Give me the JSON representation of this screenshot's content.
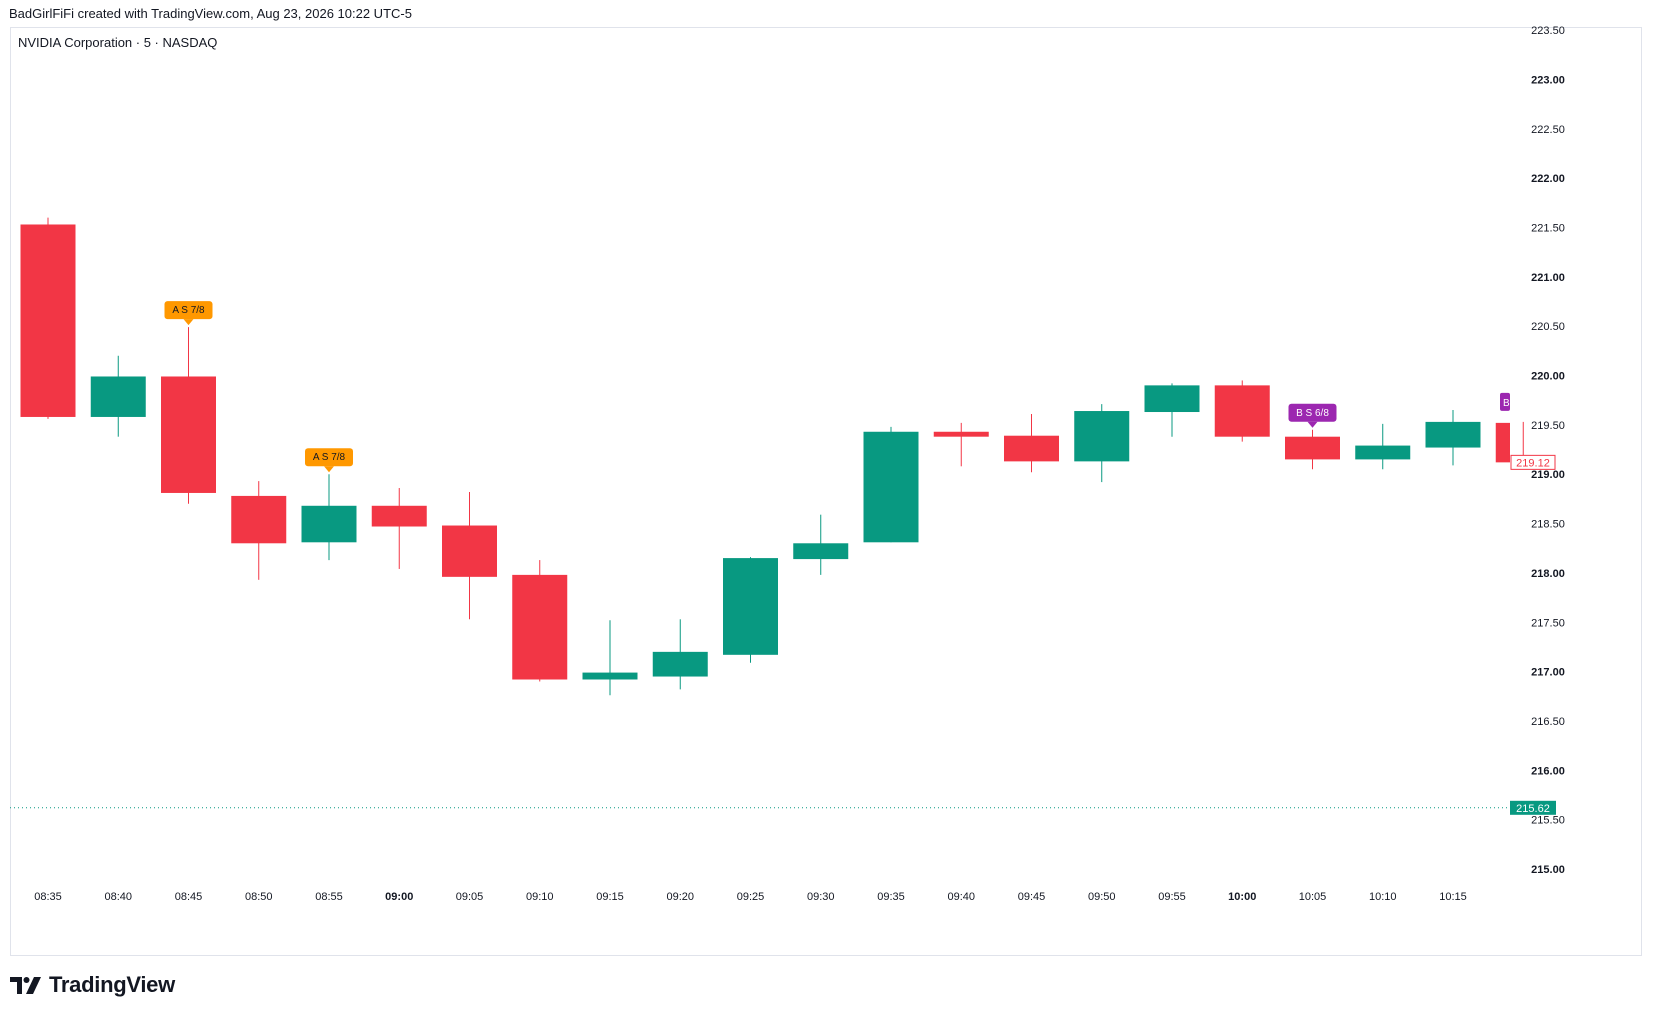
{
  "header": {
    "attribution": "BadGirlFiFi created with TradingView.com, Aug 23, 2026 10:22 UTC-5"
  },
  "symbol": {
    "title": "NVIDIA Corporation · 5 · NASDAQ"
  },
  "footer": {
    "brand": "TradingView",
    "logo_icon": "tradingview-logo-icon"
  },
  "colors": {
    "up": "#089981",
    "down": "#f23645",
    "orange": "#ff9800",
    "purple": "#9c27b0",
    "grid_text": "#131722"
  },
  "chart_data": {
    "type": "candlestick",
    "ylim": [
      214.7,
      223.6
    ],
    "y_ticks": [
      "215.00",
      "215.50",
      "216.00",
      "216.50",
      "217.00",
      "217.50",
      "218.00",
      "218.50",
      "219.00",
      "219.50",
      "220.00",
      "220.50",
      "221.00",
      "221.50",
      "222.00",
      "222.50",
      "223.00",
      "223.50"
    ],
    "y_ticks_bold": [
      "215.00",
      "216.00",
      "217.00",
      "218.00",
      "219.00",
      "220.00",
      "221.00",
      "222.00",
      "223.00"
    ],
    "x_ticks": [
      "08:35",
      "08:40",
      "08:45",
      "08:50",
      "08:55",
      "09:00",
      "09:05",
      "09:10",
      "09:15",
      "09:20",
      "09:25",
      "09:30",
      "09:35",
      "09:40",
      "09:45",
      "09:50",
      "09:55",
      "10:00",
      "10:05",
      "10:10",
      "10:15"
    ],
    "x_ticks_bold": [
      "09:00",
      "10:00"
    ],
    "candles": [
      {
        "t": "08:35",
        "o": 221.53,
        "h": 221.6,
        "l": 219.56,
        "c": 219.58
      },
      {
        "t": "08:40",
        "o": 219.58,
        "h": 220.2,
        "l": 219.38,
        "c": 219.99
      },
      {
        "t": "08:45",
        "o": 219.99,
        "h": 220.49,
        "l": 218.7,
        "c": 218.81
      },
      {
        "t": "08:50",
        "o": 218.78,
        "h": 218.93,
        "l": 217.93,
        "c": 218.3
      },
      {
        "t": "08:55",
        "o": 218.31,
        "h": 219.0,
        "l": 218.13,
        "c": 218.68
      },
      {
        "t": "09:00",
        "o": 218.68,
        "h": 218.86,
        "l": 218.04,
        "c": 218.47
      },
      {
        "t": "09:05",
        "o": 218.48,
        "h": 218.82,
        "l": 217.53,
        "c": 217.96
      },
      {
        "t": "09:10",
        "o": 217.98,
        "h": 218.13,
        "l": 216.9,
        "c": 216.92
      },
      {
        "t": "09:15",
        "o": 216.92,
        "h": 217.52,
        "l": 216.76,
        "c": 216.99
      },
      {
        "t": "09:20",
        "o": 216.95,
        "h": 217.53,
        "l": 216.82,
        "c": 217.2
      },
      {
        "t": "09:25",
        "o": 217.17,
        "h": 218.16,
        "l": 217.09,
        "c": 218.15
      },
      {
        "t": "09:30",
        "o": 218.14,
        "h": 218.59,
        "l": 217.98,
        "c": 218.3
      },
      {
        "t": "09:35",
        "o": 218.31,
        "h": 219.48,
        "l": 218.31,
        "c": 219.43
      },
      {
        "t": "09:40",
        "o": 219.43,
        "h": 219.52,
        "l": 219.08,
        "c": 219.38
      },
      {
        "t": "09:45",
        "o": 219.39,
        "h": 219.61,
        "l": 219.02,
        "c": 219.13
      },
      {
        "t": "09:50",
        "o": 219.13,
        "h": 219.71,
        "l": 218.92,
        "c": 219.64
      },
      {
        "t": "09:55",
        "o": 219.63,
        "h": 219.92,
        "l": 219.38,
        "c": 219.9
      },
      {
        "t": "10:00",
        "o": 219.9,
        "h": 219.95,
        "l": 219.33,
        "c": 219.38
      },
      {
        "t": "10:05",
        "o": 219.38,
        "h": 219.45,
        "l": 219.05,
        "c": 219.15
      },
      {
        "t": "10:10",
        "o": 219.15,
        "h": 219.51,
        "l": 219.05,
        "c": 219.29
      },
      {
        "t": "10:15",
        "o": 219.27,
        "h": 219.65,
        "l": 219.09,
        "c": 219.53
      },
      {
        "t": "10:20",
        "o": 219.52,
        "h": 219.53,
        "l": 219.12,
        "c": 219.12
      }
    ],
    "markers": [
      {
        "candle": "08:45",
        "text": "A  S 7/8",
        "color": "orange"
      },
      {
        "candle": "08:55",
        "text": "A  S 7/8",
        "color": "orange"
      },
      {
        "candle": "10:05",
        "text": "B  S 6/8",
        "color": "purple"
      },
      {
        "candle": "10:20",
        "text": "B",
        "color": "purple"
      }
    ],
    "last_price": {
      "value": 219.12,
      "label": "219.12"
    },
    "reference_line": {
      "value": 215.62,
      "label": "215.62",
      "style": "dotted"
    }
  }
}
